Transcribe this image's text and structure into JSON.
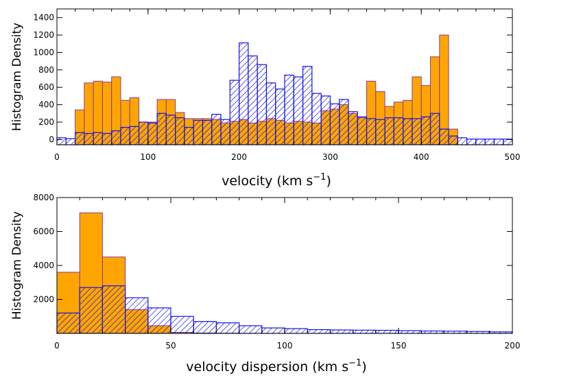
{
  "colors": {
    "orange": "#ffa500",
    "orange_edge": "#8a3aa0",
    "blue": "#1414e6"
  },
  "chart_data": [
    {
      "type": "bar",
      "name": "velocity",
      "ylabel": "Histogram Density",
      "xlabel_main": "velocity (km s",
      "xlabel_sup": "−1",
      "xlabel_close": ")",
      "xlim": [
        0,
        500
      ],
      "ylim": [
        -60,
        1500
      ],
      "xticks": [
        0,
        100,
        200,
        300,
        400,
        500
      ],
      "yticks": [
        0,
        200,
        400,
        600,
        800,
        1000,
        1200,
        1400
      ],
      "bin_edges_start": 0,
      "bin_width": 10,
      "series": [
        {
          "name": "filled",
          "style": "solid",
          "values": [
            0,
            0,
            340,
            650,
            670,
            660,
            720,
            450,
            480,
            200,
            200,
            460,
            460,
            310,
            240,
            240,
            240,
            230,
            190,
            210,
            230,
            190,
            210,
            240,
            220,
            190,
            210,
            200,
            190,
            330,
            350,
            400,
            300,
            250,
            670,
            550,
            380,
            430,
            450,
            720,
            620,
            950,
            1200,
            120,
            0,
            0,
            0,
            0,
            0,
            0
          ]
        },
        {
          "name": "hatched",
          "style": "hatched",
          "values": [
            20,
            10,
            80,
            70,
            80,
            70,
            100,
            140,
            150,
            200,
            190,
            300,
            280,
            250,
            140,
            220,
            220,
            290,
            230,
            680,
            1110,
            960,
            860,
            650,
            580,
            740,
            720,
            840,
            530,
            500,
            410,
            460,
            320,
            260,
            240,
            230,
            250,
            250,
            240,
            240,
            260,
            300,
            120,
            40,
            20,
            5,
            5,
            5,
            5,
            5
          ]
        }
      ]
    },
    {
      "type": "bar",
      "name": "velocity-dispersion",
      "ylabel": "Histogram Density",
      "xlabel_main": "velocity dispersion (km s",
      "xlabel_sup": "−1",
      "xlabel_close": ")",
      "xlim": [
        0,
        200
      ],
      "ylim": [
        0,
        8000
      ],
      "xticks": [
        0,
        50,
        100,
        150,
        200
      ],
      "yticks": [
        2000,
        4000,
        6000,
        8000
      ],
      "bin_edges_start": 0,
      "bin_width": 10,
      "series": [
        {
          "name": "filled",
          "style": "solid",
          "values": [
            3600,
            7100,
            4500,
            1400,
            450,
            60,
            20,
            10,
            0,
            0,
            0,
            0,
            0,
            0,
            0,
            0,
            0,
            0,
            0,
            0
          ]
        },
        {
          "name": "hatched",
          "style": "hatched",
          "values": [
            1200,
            2700,
            2800,
            2100,
            1500,
            1000,
            700,
            620,
            450,
            320,
            280,
            220,
            200,
            190,
            180,
            160,
            140,
            130,
            110,
            90
          ]
        }
      ]
    }
  ]
}
